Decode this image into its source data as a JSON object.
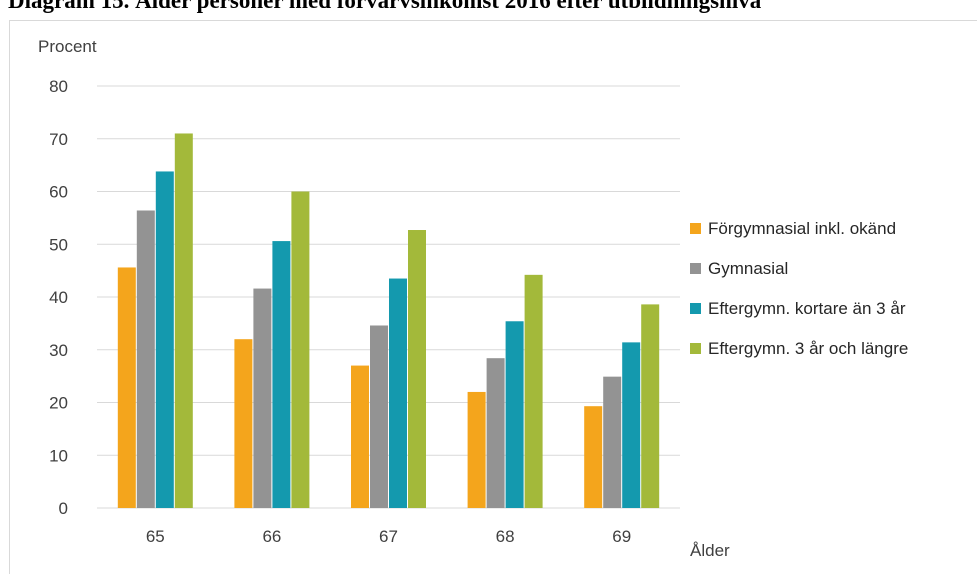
{
  "page": {
    "title": "Diagram 15. Ålder personer med förvärvsinkomst 2016 efter utbildningsnivå"
  },
  "chart_data": {
    "type": "bar",
    "title": "",
    "xlabel": "Ålder",
    "ylabel": "Procent",
    "ylim": [
      0,
      80
    ],
    "yticks": [
      0,
      10,
      20,
      30,
      40,
      50,
      60,
      70,
      80
    ],
    "grid": "horizontal",
    "legend_position": "right",
    "categories": [
      "65",
      "66",
      "67",
      "68",
      "69"
    ],
    "series": [
      {
        "name": "Förgymnasial inkl. okänd",
        "color": "#f4a51c",
        "values": [
          45.6,
          32.0,
          27.0,
          22.0,
          19.3
        ]
      },
      {
        "name": "Gymnasial",
        "color": "#939393",
        "values": [
          56.4,
          41.6,
          34.6,
          28.4,
          24.9
        ]
      },
      {
        "name": "Eftergymn. kortare än 3 år",
        "color": "#1499ae",
        "values": [
          63.8,
          50.6,
          43.5,
          35.4,
          31.4
        ]
      },
      {
        "name": "Eftergymn. 3 år och längre",
        "color": "#a3b93a",
        "values": [
          71.0,
          60.0,
          52.7,
          44.2,
          38.6
        ]
      }
    ]
  }
}
